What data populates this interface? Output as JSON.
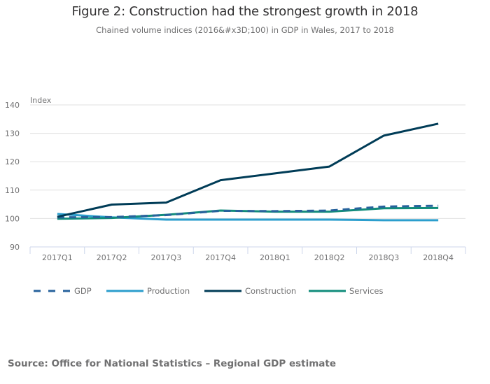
{
  "chart_data": {
    "type": "line",
    "title": "Figure 2: Construction had the strongest growth in 2018",
    "subtitle": "Chained volume indices (2016&#x3D;100) in GDP in Wales, 2017 to 2018",
    "xlabel": "",
    "ylabel": "Index",
    "ylim": [
      90,
      140
    ],
    "yticks": [
      "90",
      "100",
      "110",
      "120",
      "130",
      "140"
    ],
    "categories": [
      "2017Q1",
      "2017Q2",
      "2017Q3",
      "2017Q4",
      "2018Q1",
      "2018Q2",
      "2018Q3",
      "2018Q4"
    ],
    "grid": true,
    "legend_position": "bottom",
    "series": [
      {
        "name": "GDP",
        "color": "#27629c",
        "dashed": true,
        "values": [
          100.4,
          100.5,
          101.2,
          102.7,
          102.6,
          102.8,
          104.2,
          104.5
        ]
      },
      {
        "name": "Production",
        "color": "#2b9ecd",
        "dashed": false,
        "values": [
          101.6,
          100.4,
          99.6,
          99.6,
          99.6,
          99.6,
          99.4,
          99.4
        ]
      },
      {
        "name": "Construction",
        "color": "#003c57",
        "dashed": false,
        "values": [
          100.6,
          104.9,
          105.6,
          113.5,
          115.9,
          118.3,
          129.2,
          133.4
        ]
      },
      {
        "name": "Services",
        "color": "#118c7b",
        "dashed": false,
        "values": [
          99.9,
          100.2,
          101.3,
          102.8,
          102.4,
          102.4,
          103.6,
          103.7
        ]
      }
    ]
  },
  "source": "Source: Office for National Statistics – Regional GDP estimate"
}
